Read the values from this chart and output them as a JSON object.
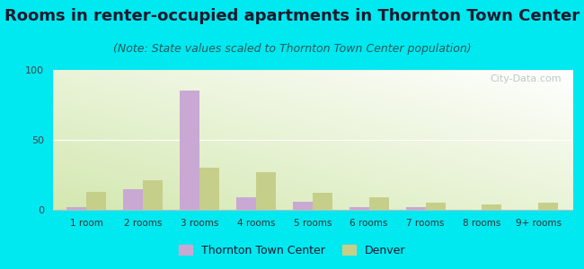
{
  "title": "Rooms in renter-occupied apartments in Thornton Town Center",
  "subtitle": "(Note: State values scaled to Thornton Town Center population)",
  "categories": [
    "1 room",
    "2 rooms",
    "3 rooms",
    "4 rooms",
    "5 rooms",
    "6 rooms",
    "7 rooms",
    "8 rooms",
    "9+ rooms"
  ],
  "thornton_values": [
    2,
    15,
    85,
    9,
    6,
    2,
    2,
    0,
    0
  ],
  "denver_values": [
    13,
    21,
    30,
    27,
    12,
    9,
    5,
    4,
    5
  ],
  "thornton_color": "#c9a8d4",
  "denver_color": "#c5cf8a",
  "background_outer": "#00e8f0",
  "ylim": [
    0,
    100
  ],
  "yticks": [
    0,
    50,
    100
  ],
  "bar_width": 0.35,
  "title_fontsize": 13,
  "subtitle_fontsize": 9,
  "legend_thornton": "Thornton Town Center",
  "legend_denver": "Denver",
  "watermark": "City-Data.com"
}
